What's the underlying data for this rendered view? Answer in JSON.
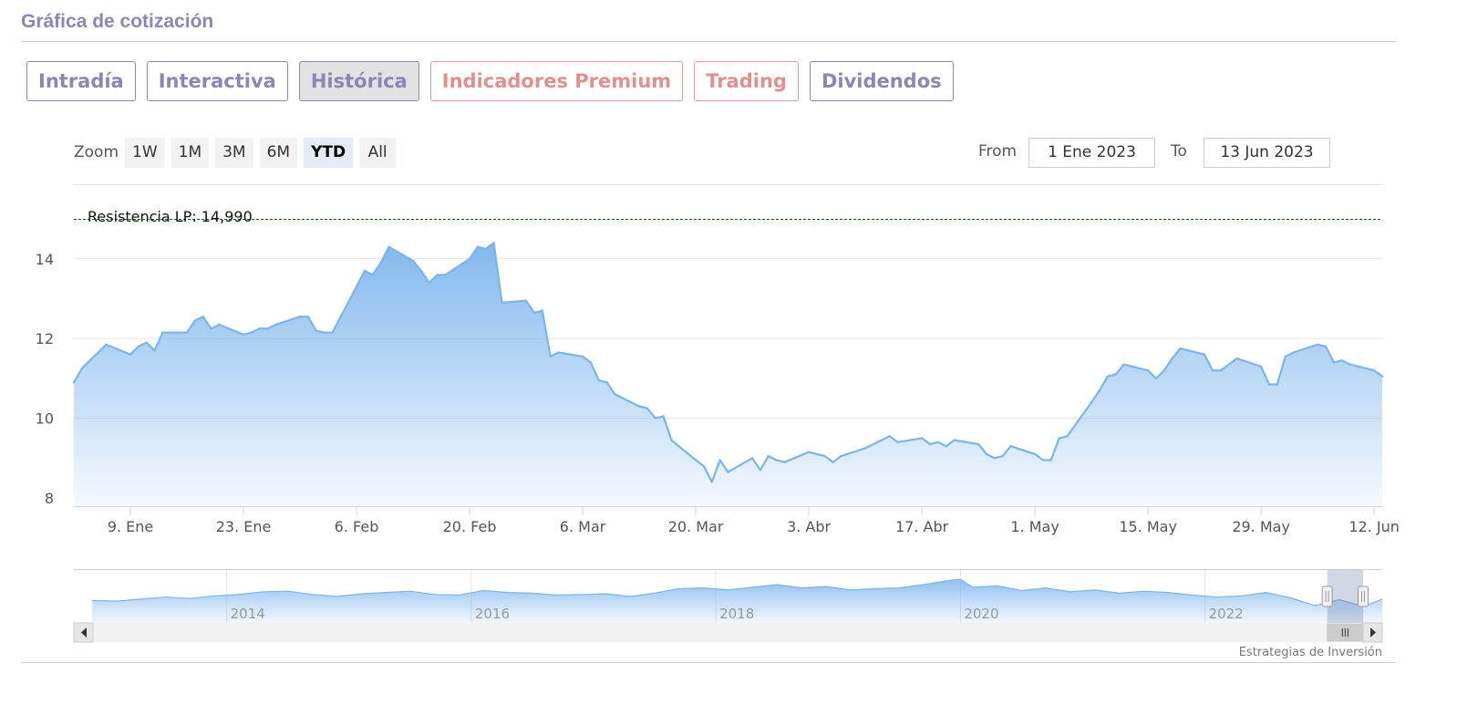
{
  "section_title": "Gráfica de cotización",
  "tabs": [
    {
      "label": "Intradía",
      "state": "normal"
    },
    {
      "label": "Interactiva",
      "state": "normal"
    },
    {
      "label": "Histórica",
      "state": "active"
    },
    {
      "label": "Indicadores Premium",
      "state": "premium"
    },
    {
      "label": "Trading",
      "state": "premium"
    },
    {
      "label": "Dividendos",
      "state": "normal"
    }
  ],
  "zoom": {
    "label": "Zoom",
    "buttons": [
      "1W",
      "1M",
      "3M",
      "6M",
      "YTD",
      "All"
    ],
    "selected": "YTD"
  },
  "range": {
    "from_label": "From",
    "from_value": "1 Ene 2023",
    "to_label": "To",
    "to_value": "13 Jun 2023"
  },
  "credit": "Estrategias de Inversión",
  "colors": {
    "accent": "#8c86b4",
    "premium": "#e0908e",
    "series_line": "#7cb5ec",
    "resistance_line": "#006400"
  },
  "chart_data": {
    "type": "area",
    "ylim": [
      8,
      16
    ],
    "yticks": [
      8,
      10,
      12,
      14
    ],
    "grid": true,
    "x_range": [
      "2023-01-02",
      "2023-06-13"
    ],
    "xticks": [
      {
        "label": "9. Ene",
        "date": "2023-01-09"
      },
      {
        "label": "23. Ene",
        "date": "2023-01-23"
      },
      {
        "label": "6. Feb",
        "date": "2023-02-06"
      },
      {
        "label": "20. Feb",
        "date": "2023-02-20"
      },
      {
        "label": "6. Mar",
        "date": "2023-03-06"
      },
      {
        "label": "20. Mar",
        "date": "2023-03-20"
      },
      {
        "label": "3. Abr",
        "date": "2023-04-03"
      },
      {
        "label": "17. Abr",
        "date": "2023-04-17"
      },
      {
        "label": "1. May",
        "date": "2023-05-01"
      },
      {
        "label": "15. May",
        "date": "2023-05-15"
      },
      {
        "label": "29. May",
        "date": "2023-05-29"
      },
      {
        "label": "12. Jun",
        "date": "2023-06-12"
      }
    ],
    "resistance": {
      "label": "Resistencia LP: 14,990",
      "value": 14.99
    },
    "series": [
      {
        "values": [
          [
            "2023-01-02",
            10.9
          ],
          [
            "2023-01-03",
            11.25
          ],
          [
            "2023-01-04",
            11.45
          ],
          [
            "2023-01-05",
            11.65
          ],
          [
            "2023-01-06",
            11.85
          ],
          [
            "2023-01-09",
            11.6
          ],
          [
            "2023-01-10",
            11.8
          ],
          [
            "2023-01-11",
            11.9
          ],
          [
            "2023-01-12",
            11.7
          ],
          [
            "2023-01-13",
            12.15
          ],
          [
            "2023-01-16",
            12.15
          ],
          [
            "2023-01-17",
            12.45
          ],
          [
            "2023-01-18",
            12.55
          ],
          [
            "2023-01-19",
            12.25
          ],
          [
            "2023-01-20",
            12.35
          ],
          [
            "2023-01-23",
            12.1
          ],
          [
            "2023-01-24",
            12.15
          ],
          [
            "2023-01-25",
            12.25
          ],
          [
            "2023-01-26",
            12.25
          ],
          [
            "2023-01-27",
            12.35
          ],
          [
            "2023-01-30",
            12.55
          ],
          [
            "2023-01-31",
            12.55
          ],
          [
            "2023-02-01",
            12.2
          ],
          [
            "2023-02-02",
            12.15
          ],
          [
            "2023-02-03",
            12.15
          ],
          [
            "2023-02-06",
            13.3
          ],
          [
            "2023-02-07",
            13.7
          ],
          [
            "2023-02-08",
            13.6
          ],
          [
            "2023-02-09",
            13.9
          ],
          [
            "2023-02-10",
            14.3
          ],
          [
            "2023-02-13",
            13.95
          ],
          [
            "2023-02-14",
            13.7
          ],
          [
            "2023-02-15",
            13.4
          ],
          [
            "2023-02-16",
            13.6
          ],
          [
            "2023-02-17",
            13.6
          ],
          [
            "2023-02-20",
            14.0
          ],
          [
            "2023-02-21",
            14.3
          ],
          [
            "2023-02-22",
            14.25
          ],
          [
            "2023-02-23",
            14.4
          ],
          [
            "2023-02-24",
            12.9
          ],
          [
            "2023-02-27",
            12.95
          ],
          [
            "2023-02-28",
            12.65
          ],
          [
            "2023-03-01",
            12.7
          ],
          [
            "2023-03-02",
            11.55
          ],
          [
            "2023-03-03",
            11.65
          ],
          [
            "2023-03-06",
            11.55
          ],
          [
            "2023-03-07",
            11.4
          ],
          [
            "2023-03-08",
            10.95
          ],
          [
            "2023-03-09",
            10.9
          ],
          [
            "2023-03-10",
            10.6
          ],
          [
            "2023-03-13",
            10.3
          ],
          [
            "2023-03-14",
            10.25
          ],
          [
            "2023-03-15",
            10.0
          ],
          [
            "2023-03-16",
            10.05
          ],
          [
            "2023-03-17",
            9.45
          ],
          [
            "2023-03-20",
            8.95
          ],
          [
            "2023-03-21",
            8.8
          ],
          [
            "2023-03-22",
            8.4
          ],
          [
            "2023-03-23",
            8.95
          ],
          [
            "2023-03-24",
            8.65
          ],
          [
            "2023-03-27",
            9.0
          ],
          [
            "2023-03-28",
            8.7
          ],
          [
            "2023-03-29",
            9.05
          ],
          [
            "2023-03-30",
            8.95
          ],
          [
            "2023-03-31",
            8.9
          ],
          [
            "2023-04-03",
            9.15
          ],
          [
            "2023-04-04",
            9.1
          ],
          [
            "2023-04-05",
            9.05
          ],
          [
            "2023-04-06",
            8.9
          ],
          [
            "2023-04-07",
            9.05
          ],
          [
            "2023-04-10",
            9.25
          ],
          [
            "2023-04-11",
            9.35
          ],
          [
            "2023-04-12",
            9.45
          ],
          [
            "2023-04-13",
            9.55
          ],
          [
            "2023-04-14",
            9.4
          ],
          [
            "2023-04-17",
            9.5
          ],
          [
            "2023-04-18",
            9.35
          ],
          [
            "2023-04-19",
            9.4
          ],
          [
            "2023-04-20",
            9.3
          ],
          [
            "2023-04-21",
            9.45
          ],
          [
            "2023-04-24",
            9.35
          ],
          [
            "2023-04-25",
            9.1
          ],
          [
            "2023-04-26",
            9.0
          ],
          [
            "2023-04-27",
            9.05
          ],
          [
            "2023-04-28",
            9.3
          ],
          [
            "2023-05-01",
            9.1
          ],
          [
            "2023-05-02",
            8.95
          ],
          [
            "2023-05-03",
            8.95
          ],
          [
            "2023-05-04",
            9.5
          ],
          [
            "2023-05-05",
            9.55
          ],
          [
            "2023-05-08",
            10.4
          ],
          [
            "2023-05-09",
            10.7
          ],
          [
            "2023-05-10",
            11.05
          ],
          [
            "2023-05-11",
            11.1
          ],
          [
            "2023-05-12",
            11.35
          ],
          [
            "2023-05-15",
            11.2
          ],
          [
            "2023-05-16",
            11.0
          ],
          [
            "2023-05-17",
            11.2
          ],
          [
            "2023-05-18",
            11.5
          ],
          [
            "2023-05-19",
            11.75
          ],
          [
            "2023-05-22",
            11.6
          ],
          [
            "2023-05-23",
            11.2
          ],
          [
            "2023-05-24",
            11.2
          ],
          [
            "2023-05-25",
            11.35
          ],
          [
            "2023-05-26",
            11.5
          ],
          [
            "2023-05-29",
            11.3
          ],
          [
            "2023-05-30",
            10.85
          ],
          [
            "2023-05-31",
            10.85
          ],
          [
            "2023-06-01",
            11.55
          ],
          [
            "2023-06-02",
            11.65
          ],
          [
            "2023-06-05",
            11.85
          ],
          [
            "2023-06-06",
            11.8
          ],
          [
            "2023-06-07",
            11.4
          ],
          [
            "2023-06-08",
            11.45
          ],
          [
            "2023-06-09",
            11.35
          ],
          [
            "2023-06-12",
            11.2
          ],
          [
            "2023-06-13",
            11.05
          ]
        ]
      }
    ],
    "navigator": {
      "year_labels": [
        "2014",
        "2016",
        "2018",
        "2020",
        "2022"
      ],
      "x_range": [
        2012.75,
        2023.45
      ],
      "ylim": [
        7,
        15
      ],
      "selected_range": [
        "2023-01-01",
        "2023-06-13"
      ],
      "values": [
        [
          2012.9,
          10.4
        ],
        [
          2013.1,
          10.3
        ],
        [
          2013.3,
          10.6
        ],
        [
          2013.5,
          10.9
        ],
        [
          2013.7,
          10.7
        ],
        [
          2013.9,
          11.1
        ],
        [
          2014.1,
          11.3
        ],
        [
          2014.3,
          11.7
        ],
        [
          2014.5,
          11.8
        ],
        [
          2014.7,
          11.3
        ],
        [
          2014.9,
          11.0
        ],
        [
          2015.1,
          11.4
        ],
        [
          2015.3,
          11.6
        ],
        [
          2015.5,
          11.8
        ],
        [
          2015.7,
          11.3
        ],
        [
          2015.9,
          11.2
        ],
        [
          2016.1,
          11.9
        ],
        [
          2016.3,
          11.6
        ],
        [
          2016.5,
          11.5
        ],
        [
          2016.7,
          11.2
        ],
        [
          2016.9,
          11.3
        ],
        [
          2017.1,
          11.4
        ],
        [
          2017.3,
          11.0
        ],
        [
          2017.5,
          11.5
        ],
        [
          2017.7,
          12.2
        ],
        [
          2017.9,
          12.3
        ],
        [
          2018.1,
          12.0
        ],
        [
          2018.3,
          12.4
        ],
        [
          2018.5,
          12.8
        ],
        [
          2018.7,
          12.3
        ],
        [
          2018.9,
          12.5
        ],
        [
          2019.1,
          12.0
        ],
        [
          2019.3,
          12.2
        ],
        [
          2019.5,
          12.3
        ],
        [
          2019.7,
          12.8
        ],
        [
          2019.9,
          13.4
        ],
        [
          2020.0,
          13.6
        ],
        [
          2020.1,
          12.4
        ],
        [
          2020.3,
          12.6
        ],
        [
          2020.5,
          11.9
        ],
        [
          2020.7,
          12.3
        ],
        [
          2020.9,
          11.7
        ],
        [
          2021.1,
          12.0
        ],
        [
          2021.3,
          11.5
        ],
        [
          2021.5,
          11.8
        ],
        [
          2021.7,
          11.6
        ],
        [
          2021.9,
          11.2
        ],
        [
          2022.1,
          10.9
        ],
        [
          2022.3,
          11.1
        ],
        [
          2022.5,
          11.6
        ],
        [
          2022.7,
          10.8
        ],
        [
          2022.9,
          9.6
        ],
        [
          2023.1,
          10.5
        ],
        [
          2023.3,
          9.5
        ],
        [
          2023.45,
          10.6
        ]
      ]
    }
  }
}
